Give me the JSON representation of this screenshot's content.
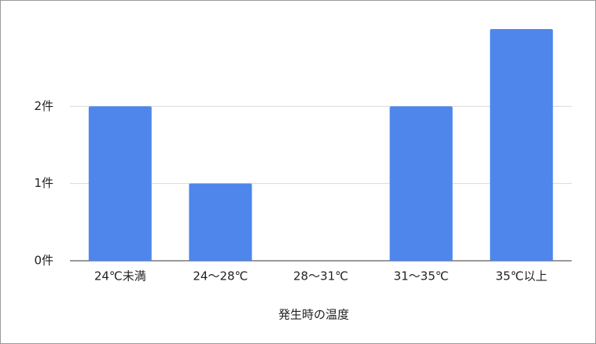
{
  "chart_data": {
    "type": "bar",
    "x_label": "発生時の温度",
    "categories": [
      "24℃未満",
      "24〜28℃",
      "28〜31℃",
      "31〜35℃",
      "35℃以上"
    ],
    "values": [
      2,
      1,
      0,
      2,
      3
    ],
    "color": "#4f86ec",
    "ylim": [
      0,
      3
    ],
    "yticks": [
      {
        "value": 0,
        "label": "0件"
      },
      {
        "value": 1,
        "label": "1件"
      },
      {
        "value": 2,
        "label": "2件"
      }
    ],
    "grid": true
  }
}
